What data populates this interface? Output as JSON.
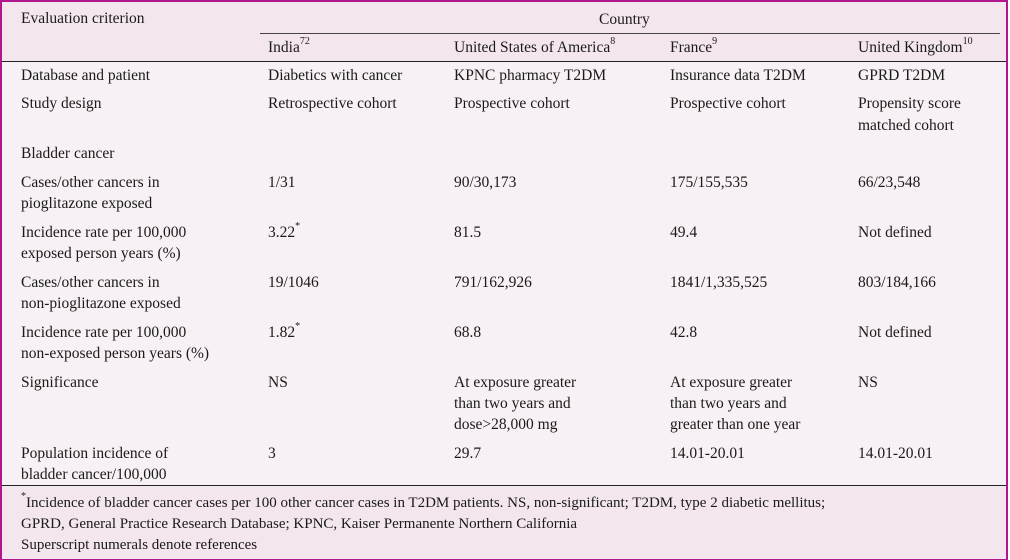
{
  "header": {
    "col0": "Evaluation criterion",
    "group": "Country",
    "countries": [
      {
        "name": "India",
        "ref": "72"
      },
      {
        "name": "United States of America",
        "ref": "8"
      },
      {
        "name": "France",
        "ref": "9"
      },
      {
        "name": "United Kingdom",
        "ref": "10"
      }
    ]
  },
  "rows": {
    "database": {
      "label": "Database and patient",
      "india": "Diabetics with cancer",
      "usa": "KPNC pharmacy T2DM",
      "france": "Insurance data T2DM",
      "uk": "GPRD T2DM"
    },
    "design": {
      "label": "Study design",
      "india": "Retrospective cohort",
      "usa": "Prospective cohort",
      "france": "Prospective cohort",
      "uk_1": "Propensity score",
      "uk_2": "matched cohort"
    },
    "bladder": {
      "label": "Bladder cancer"
    },
    "cases_exposed": {
      "label_1": "Cases/other cancers in",
      "label_2": "pioglitazone exposed",
      "india": "1/31",
      "usa": "90/30,173",
      "france": "175/155,535",
      "uk": "66/23,548"
    },
    "inc_exposed": {
      "label_1": "Incidence rate per 100,000",
      "label_2": "exposed person years (%)",
      "india": "3.22",
      "india_mark": "*",
      "usa": "81.5",
      "france": "49.4",
      "uk": "Not defined"
    },
    "cases_nonexposed": {
      "label_1": "Cases/other cancers in",
      "label_2": "non-pioglitazone exposed",
      "india": "19/1046",
      "usa": "791/162,926",
      "france": "1841/1,335,525",
      "uk": "803/184,166"
    },
    "inc_nonexposed": {
      "label_1": "Incidence rate per 100,000",
      "label_2": "non-exposed person years (%)",
      "india": "1.82",
      "india_mark": "*",
      "usa": "68.8",
      "france": "42.8",
      "uk": "Not defined"
    },
    "significance": {
      "label": "Significance",
      "india": "NS",
      "usa_1": "At exposure greater",
      "usa_2": "than two years and",
      "usa_3": "dose>28,000 mg",
      "france_1": "At exposure greater",
      "france_2": "than two years and",
      "france_3": "greater than one year",
      "uk": "NS"
    },
    "population": {
      "label_1": "Population incidence of",
      "label_2": "bladder cancer/100,000",
      "india": "3",
      "usa": "29.7",
      "france": "14.01-20.01",
      "uk": "14.01-20.01"
    }
  },
  "footnotes": {
    "mark": "*",
    "line1": "Incidence of bladder cancer cases per 100 other cancer cases in T2DM patients. NS, non-significant; T2DM, type 2 diabetic mellitus;",
    "line2": "GPRD, General Practice Research Database; KPNC, Kaiser Permanente Northern California",
    "line3": "Superscript numerals denote references"
  },
  "colors": {
    "border": "#b0178e",
    "header_bg": "#f3e6ee",
    "body_bg": "#f7f0f4"
  }
}
